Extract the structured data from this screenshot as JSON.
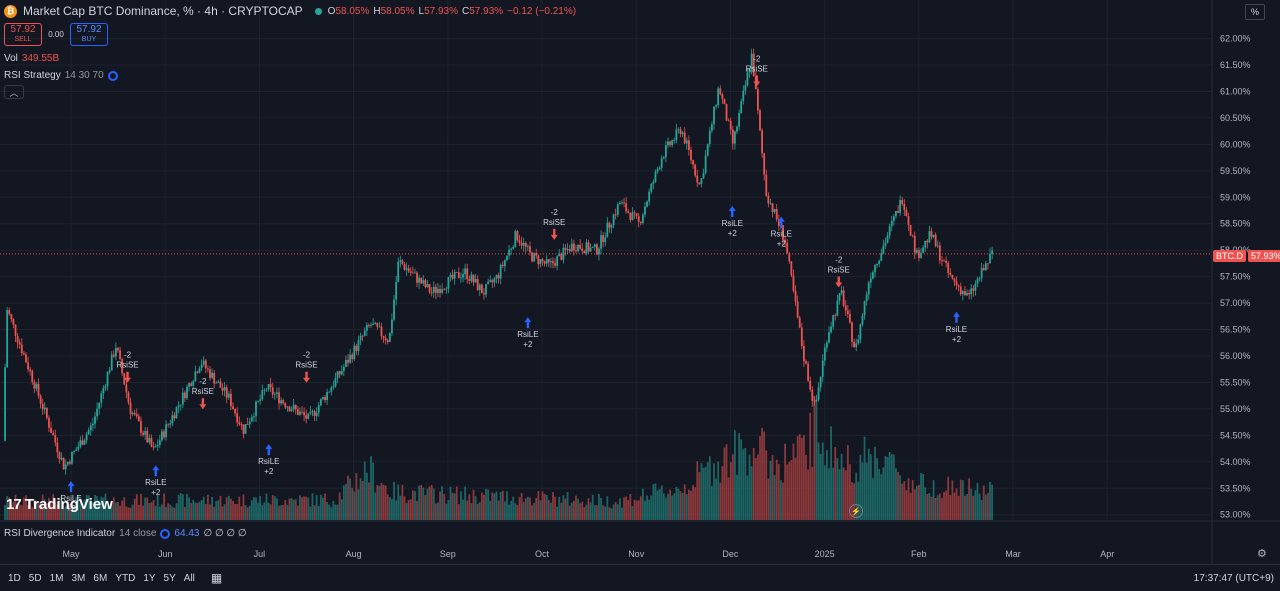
{
  "header": {
    "title": "Market Cap BTC Dominance, % · 4h · CRYPTOCAP",
    "ohlc": [
      {
        "label": "O",
        "value": "58.05%"
      },
      {
        "label": "H",
        "value": "58.05%"
      },
      {
        "label": "L",
        "value": "57.93%"
      },
      {
        "label": "C",
        "value": "57.93%"
      }
    ],
    "change": "−0.12 (−0.21%)"
  },
  "trade": {
    "sell_price": "57.92",
    "sell_label": "SELL",
    "spread": "0.00",
    "buy_price": "57.92",
    "buy_label": "BUY"
  },
  "volume": {
    "label": "Vol",
    "value": "349.55B"
  },
  "strategy": {
    "name": "RSI Strategy",
    "params": "14 30 70"
  },
  "rsi_divergence": {
    "name": "RSI Divergence Indicator",
    "params": "14 close",
    "value": "64.43",
    "extra": "∅ ∅ ∅ ∅"
  },
  "branding": "TradingView",
  "scale_button": "%",
  "price_tag": {
    "symbol": "BTC.D",
    "value": "57.93%"
  },
  "bottom": {
    "ranges": [
      "1D",
      "5D",
      "1M",
      "3M",
      "6M",
      "YTD",
      "1Y",
      "5Y",
      "All"
    ],
    "time": "17:37:47 (UTC+9)"
  },
  "colors": {
    "up": "#26a69a",
    "down": "#ef5350",
    "background": "#131722",
    "buy_marker": "#2962ff",
    "sell_marker": "#ef5350"
  },
  "chart_data": {
    "type": "candlestick",
    "y_unit": "%",
    "y_range": [
      52.9,
      62.2
    ],
    "y_ticks": [
      "62.00%",
      "61.50%",
      "61.00%",
      "60.50%",
      "60.00%",
      "59.50%",
      "59.00%",
      "58.50%",
      "58.00%",
      "57.50%",
      "57.00%",
      "56.50%",
      "56.00%",
      "55.50%",
      "55.00%",
      "54.50%",
      "54.00%",
      "53.50%",
      "53.00%"
    ],
    "x_labels": [
      "May",
      "Jun",
      "Jul",
      "Aug",
      "Sep",
      "Oct",
      "Nov",
      "Dec",
      "2025",
      "Feb",
      "Mar",
      "Apr"
    ],
    "current_price": 57.93,
    "price_path": [
      {
        "t": 0.0,
        "v": 54.4
      },
      {
        "t": 0.04,
        "v": 56.9
      },
      {
        "t": 0.35,
        "v": 55.4
      },
      {
        "t": 0.65,
        "v": 53.9
      },
      {
        "t": 0.95,
        "v": 54.7
      },
      {
        "t": 1.2,
        "v": 56.2
      },
      {
        "t": 1.35,
        "v": 55.0
      },
      {
        "t": 1.6,
        "v": 54.2
      },
      {
        "t": 1.9,
        "v": 55.2
      },
      {
        "t": 2.1,
        "v": 55.9
      },
      {
        "t": 2.4,
        "v": 55.2
      },
      {
        "t": 2.55,
        "v": 54.6
      },
      {
        "t": 2.8,
        "v": 55.4
      },
      {
        "t": 3.0,
        "v": 55.1
      },
      {
        "t": 3.25,
        "v": 54.8
      },
      {
        "t": 3.55,
        "v": 55.6
      },
      {
        "t": 3.9,
        "v": 56.6
      },
      {
        "t": 4.1,
        "v": 56.3
      },
      {
        "t": 4.2,
        "v": 57.8
      },
      {
        "t": 4.55,
        "v": 57.2
      },
      {
        "t": 4.9,
        "v": 57.6
      },
      {
        "t": 5.1,
        "v": 57.2
      },
      {
        "t": 5.25,
        "v": 57.5
      },
      {
        "t": 5.45,
        "v": 58.3
      },
      {
        "t": 5.6,
        "v": 57.9
      },
      {
        "t": 5.8,
        "v": 57.7
      },
      {
        "t": 6.05,
        "v": 58.1
      },
      {
        "t": 6.3,
        "v": 58.0
      },
      {
        "t": 6.55,
        "v": 58.9
      },
      {
        "t": 6.75,
        "v": 58.5
      },
      {
        "t": 7.0,
        "v": 59.8
      },
      {
        "t": 7.2,
        "v": 60.3
      },
      {
        "t": 7.4,
        "v": 59.2
      },
      {
        "t": 7.6,
        "v": 61.1
      },
      {
        "t": 7.75,
        "v": 60.0
      },
      {
        "t": 7.95,
        "v": 61.7
      },
      {
        "t": 8.1,
        "v": 59.1
      },
      {
        "t": 8.3,
        "v": 58.2
      },
      {
        "t": 8.5,
        "v": 56.0
      },
      {
        "t": 8.62,
        "v": 55.0
      },
      {
        "t": 8.75,
        "v": 56.4
      },
      {
        "t": 8.9,
        "v": 57.2
      },
      {
        "t": 9.05,
        "v": 56.1
      },
      {
        "t": 9.2,
        "v": 57.5
      },
      {
        "t": 9.35,
        "v": 58.1
      },
      {
        "t": 9.55,
        "v": 59.0
      },
      {
        "t": 9.7,
        "v": 57.9
      },
      {
        "t": 9.85,
        "v": 58.3
      },
      {
        "t": 10.05,
        "v": 57.5
      },
      {
        "t": 10.25,
        "v": 57.1
      },
      {
        "t": 10.5,
        "v": 57.93
      }
    ],
    "signals": [
      {
        "type": "entry",
        "label": "RsiLE",
        "qty": "+2",
        "t": 0.7,
        "v": 53.9
      },
      {
        "type": "exit",
        "label": "RsiSE",
        "qty": "-2",
        "t": 1.3,
        "v": 55.4
      },
      {
        "type": "entry",
        "label": "RsiLE",
        "qty": "+2",
        "t": 1.6,
        "v": 54.2
      },
      {
        "type": "exit",
        "label": "RsiSE",
        "qty": "-2",
        "t": 2.1,
        "v": 54.9
      },
      {
        "type": "entry",
        "label": "RsiLE",
        "qty": "+2",
        "t": 2.8,
        "v": 54.6
      },
      {
        "type": "exit",
        "label": "RsiSE",
        "qty": "-2",
        "t": 3.2,
        "v": 55.4
      },
      {
        "type": "entry",
        "label": "RsiLE",
        "qty": "+2",
        "t": 5.55,
        "v": 57.0
      },
      {
        "type": "exit",
        "label": "RsiSE",
        "qty": "-2",
        "t": 5.83,
        "v": 58.1
      },
      {
        "type": "entry",
        "label": "RsiLE",
        "qty": "+2",
        "t": 7.72,
        "v": 59.1
      },
      {
        "type": "exit",
        "label": "RsiSE",
        "qty": "-2",
        "t": 7.98,
        "v": 61.0
      },
      {
        "type": "entry",
        "label": "RsiLE",
        "qty": "+2",
        "t": 8.24,
        "v": 58.9
      },
      {
        "type": "exit",
        "label": "RsiSE",
        "qty": "-2",
        "t": 8.85,
        "v": 57.2
      },
      {
        "type": "entry",
        "label": "RsiLE",
        "qty": "+2",
        "t": 10.1,
        "v": 57.1
      }
    ],
    "volume_envelope": [
      {
        "t": 0.0,
        "v": 0.2
      },
      {
        "t": 3.5,
        "v": 0.22
      },
      {
        "t": 3.85,
        "v": 0.55
      },
      {
        "t": 4.1,
        "v": 0.3
      },
      {
        "t": 6.5,
        "v": 0.2
      },
      {
        "t": 7.2,
        "v": 0.35
      },
      {
        "t": 7.6,
        "v": 0.65
      },
      {
        "t": 7.95,
        "v": 0.8
      },
      {
        "t": 8.2,
        "v": 0.6
      },
      {
        "t": 8.5,
        "v": 0.75
      },
      {
        "t": 8.6,
        "v": 1.0
      },
      {
        "t": 8.9,
        "v": 0.6
      },
      {
        "t": 9.3,
        "v": 0.7
      },
      {
        "t": 9.6,
        "v": 0.4
      },
      {
        "t": 10.5,
        "v": 0.3
      }
    ]
  }
}
